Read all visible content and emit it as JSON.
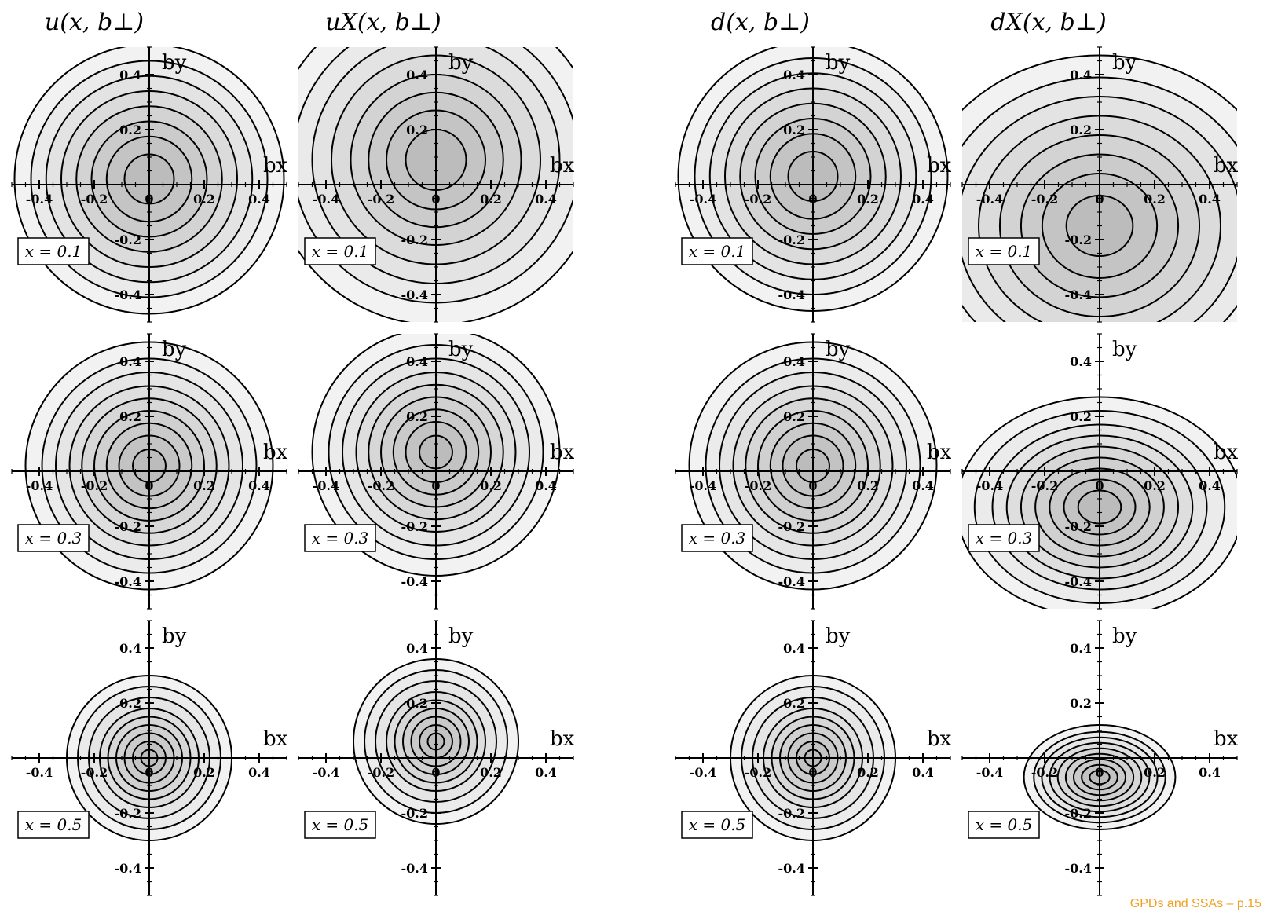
{
  "footer": "GPDs and SSAs – p.15",
  "chart_data": {
    "type": "heatmap",
    "subtype": "contour",
    "columns": [
      {
        "key": "u",
        "title": "u(x, b⊥)"
      },
      {
        "key": "uX",
        "title": "uX(x, b⊥)"
      },
      {
        "key": "d",
        "title": "d(x, b⊥)"
      },
      {
        "key": "dX",
        "title": "dX(x, b⊥)"
      }
    ],
    "rows": [
      {
        "x_value": 0.1,
        "label": "x = 0.1"
      },
      {
        "x_value": 0.3,
        "label": "x = 0.3"
      },
      {
        "x_value": 0.5,
        "label": "x = 0.5"
      }
    ],
    "xlabel": "bx",
    "ylabel": "by",
    "xlim": [
      -0.5,
      0.5
    ],
    "ylim": [
      -0.5,
      0.5
    ],
    "x_ticks": [
      -0.4,
      -0.2,
      0,
      0.2,
      0.4
    ],
    "y_ticks": [
      -0.4,
      -0.2,
      0.2,
      0.4
    ],
    "tick_labels_x": [
      "-0.4",
      "-0.2",
      "0",
      "0.2",
      "0.4"
    ],
    "tick_labels_y": [
      "-0.4",
      "-0.2",
      "0.2",
      "0.4"
    ],
    "panels": [
      {
        "col": "u",
        "x": 0.1,
        "center": [
          0,
          0.02
        ],
        "radii": [
          0.09,
          0.155,
          0.21,
          0.265,
          0.32,
          0.375,
          0.43,
          0.49
        ],
        "aspect": [
          1,
          1
        ]
      },
      {
        "col": "uX",
        "x": 0.1,
        "center": [
          0,
          0.09
        ],
        "radii": [
          0.11,
          0.18,
          0.245,
          0.31,
          0.38,
          0.45,
          0.52,
          0.6
        ],
        "aspect": [
          1,
          1
        ]
      },
      {
        "col": "d",
        "x": 0.1,
        "center": [
          0,
          0.03
        ],
        "radii": [
          0.09,
          0.155,
          0.21,
          0.265,
          0.32,
          0.375,
          0.43,
          0.49
        ],
        "aspect": [
          1,
          1
        ]
      },
      {
        "col": "dX",
        "x": 0.1,
        "center": [
          0,
          -0.15
        ],
        "radii": [
          0.11,
          0.19,
          0.26,
          0.33,
          0.4,
          0.47,
          0.54,
          0.62
        ],
        "aspect": [
          1.1,
          1
        ]
      },
      {
        "col": "u",
        "x": 0.3,
        "center": [
          0,
          0.02
        ],
        "radii": [
          0.06,
          0.11,
          0.155,
          0.2,
          0.245,
          0.29,
          0.34,
          0.39,
          0.45
        ],
        "aspect": [
          1,
          1
        ]
      },
      {
        "col": "uX",
        "x": 0.3,
        "center": [
          0,
          0.07
        ],
        "radii": [
          0.06,
          0.11,
          0.155,
          0.2,
          0.245,
          0.29,
          0.34,
          0.39,
          0.45
        ],
        "aspect": [
          1,
          1
        ]
      },
      {
        "col": "d",
        "x": 0.3,
        "center": [
          0,
          0.02
        ],
        "radii": [
          0.06,
          0.11,
          0.155,
          0.2,
          0.245,
          0.29,
          0.34,
          0.39,
          0.45
        ],
        "aspect": [
          1,
          1
        ]
      },
      {
        "col": "dX",
        "x": 0.3,
        "center": [
          0,
          -0.13
        ],
        "radii": [
          0.06,
          0.1,
          0.14,
          0.18,
          0.22,
          0.26,
          0.3,
          0.35,
          0.4
        ],
        "aspect": [
          1.3,
          1
        ]
      },
      {
        "col": "u",
        "x": 0.5,
        "center": [
          0,
          0.0
        ],
        "radii": [
          0.03,
          0.06,
          0.09,
          0.12,
          0.15,
          0.18,
          0.22,
          0.26,
          0.3
        ],
        "aspect": [
          1,
          1
        ]
      },
      {
        "col": "uX",
        "x": 0.5,
        "center": [
          0,
          0.06
        ],
        "radii": [
          0.03,
          0.06,
          0.09,
          0.12,
          0.15,
          0.18,
          0.22,
          0.26,
          0.3
        ],
        "aspect": [
          1,
          1
        ]
      },
      {
        "col": "d",
        "x": 0.5,
        "center": [
          0,
          0.0
        ],
        "radii": [
          0.03,
          0.06,
          0.09,
          0.12,
          0.15,
          0.18,
          0.22,
          0.26,
          0.3
        ],
        "aspect": [
          1,
          1
        ]
      },
      {
        "col": "dX",
        "x": 0.5,
        "center": [
          0,
          -0.07
        ],
        "radii": [
          0.025,
          0.045,
          0.065,
          0.085,
          0.105,
          0.125,
          0.145,
          0.165,
          0.19
        ],
        "aspect": [
          1.45,
          1
        ]
      }
    ]
  },
  "colors": {
    "background": "#ffffff",
    "fill_outer": "#f2f2f2",
    "fill_inner": "#bcbcbc",
    "contour_line": "#000000",
    "footer": "#f0a020"
  }
}
